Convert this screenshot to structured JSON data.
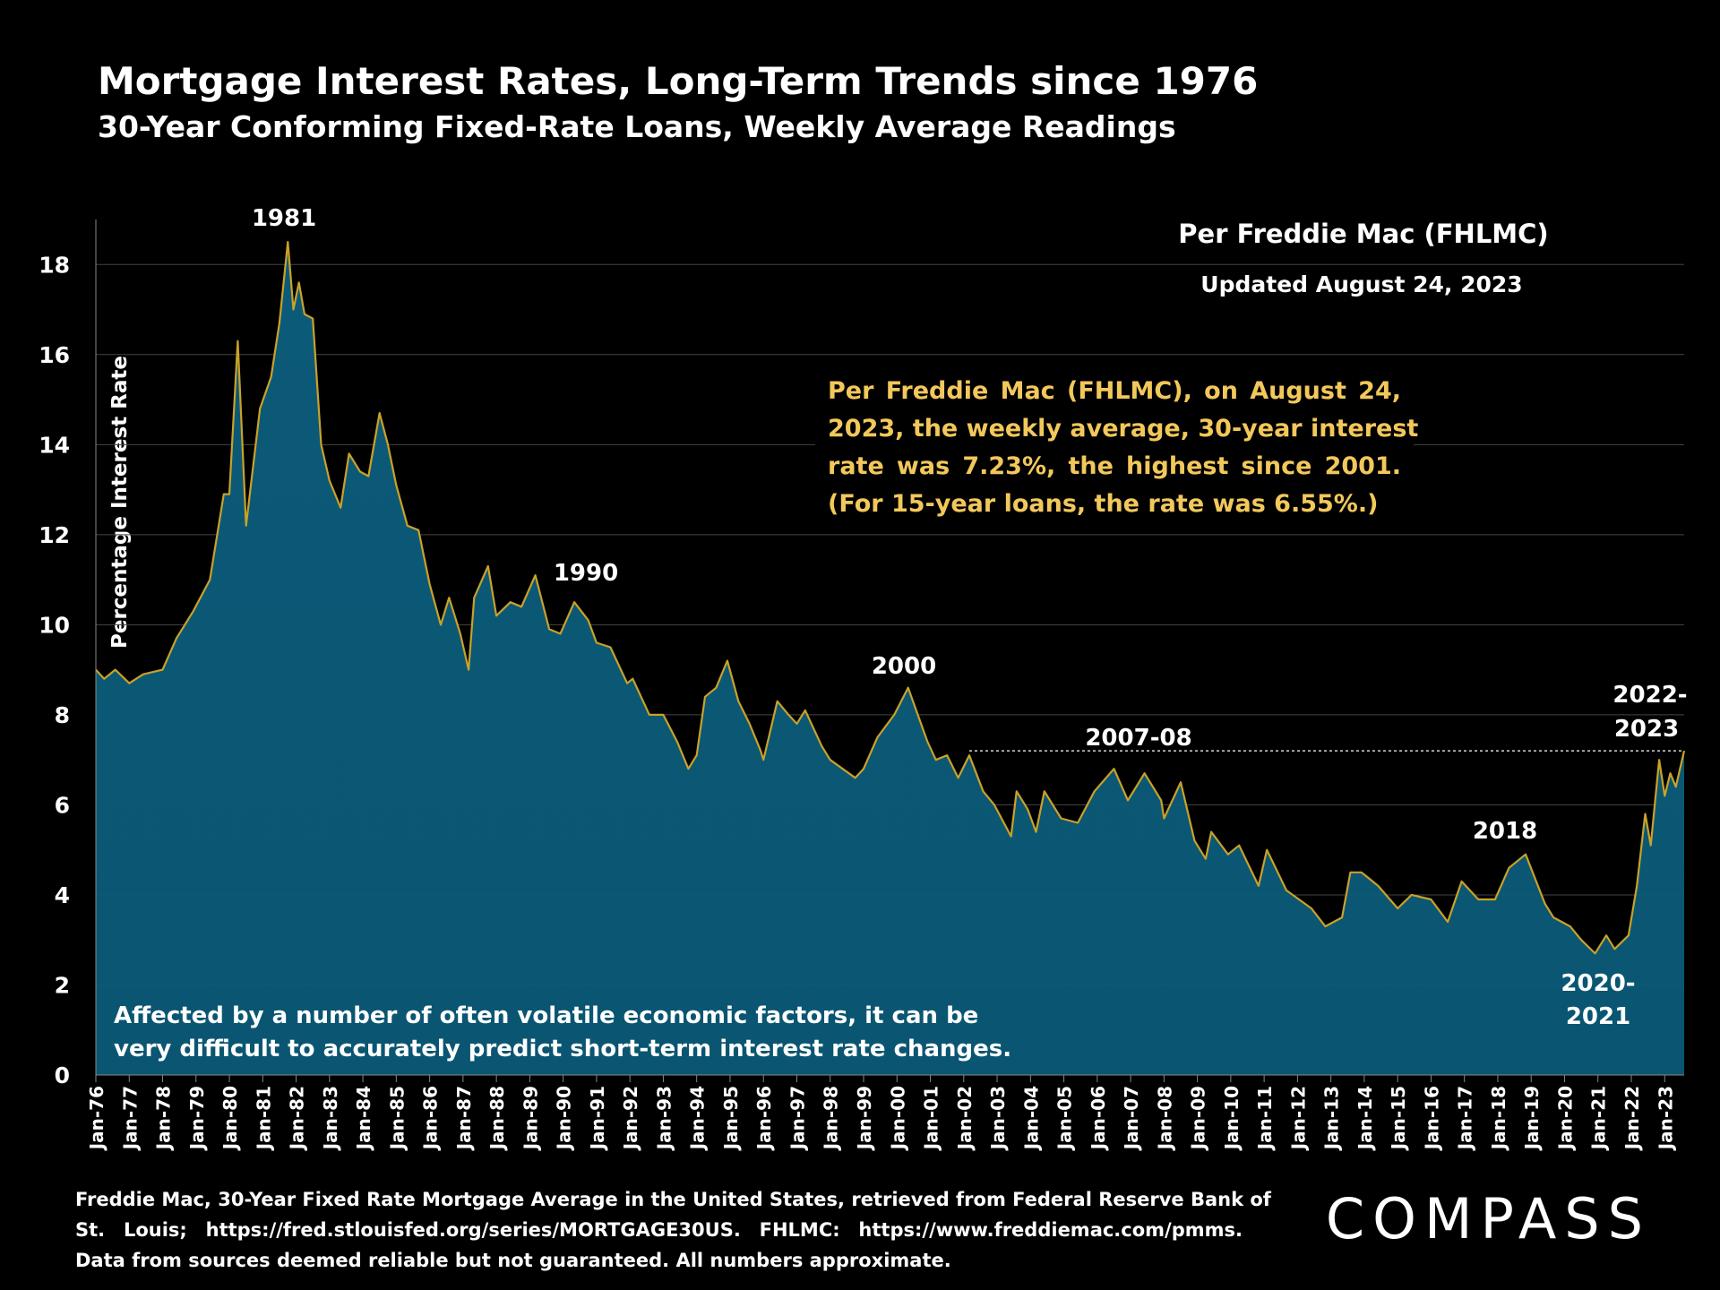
{
  "chart_data": {
    "type": "area",
    "title": "Mortgage Interest Rates, Long-Term Trends since 1976",
    "subtitle": "30-Year Conforming Fixed-Rate Loans, Weekly Average Readings",
    "source_heading": "Per Freddie Mac (FHLMC)",
    "updated": "Updated August 24, 2023",
    "y_label": "Percentage Interest  Rate",
    "logo": "COMPASS",
    "note_lines": [
      "Per Freddie Mac (FHLMC), on August 24,",
      "2023, the weekly average, 30-year interest",
      "rate was 7.23%, the highest since 2001.",
      "(For 15-year loans, the rate was 6.55%.)"
    ],
    "bottom_note_lines": [
      "Affected by a number of often volatile economic factors, it can be",
      "very difficult to accurately predict short-term interest rate changes."
    ],
    "footer_lines": [
      "Freddie Mac, 30-Year Fixed Rate Mortgage Average in the United States, retrieved from Federal Reserve Bank of",
      "St. Louis; https://fred.stlouisfed.org/series/MORTGAGE30US. FHLMC: https://www.freddiemac.com/pmms.",
      "Data from sources deemed reliable but not guaranteed. All numbers approximate."
    ],
    "annotations": [
      "1981",
      "1990",
      "2000",
      "2007-08",
      "2018",
      "2022-",
      "2023",
      "2020-",
      "2021"
    ],
    "reference_line": {
      "value": 7.2,
      "from": "2002-03"
    },
    "fill_color": "#0b5a78",
    "line_color": "#c9a227",
    "grid": true,
    "ylim": [
      0,
      19
    ],
    "yticks": [
      0,
      2,
      4,
      6,
      8,
      10,
      12,
      14,
      16,
      18
    ],
    "xlim": [
      "1976-01",
      "2023-08"
    ],
    "xticks": [
      {
        "value": "1976-01",
        "label": "Jan-76"
      },
      {
        "value": "1977-01",
        "label": "Jan-77"
      },
      {
        "value": "1978-01",
        "label": "Jan-78"
      },
      {
        "value": "1979-01",
        "label": "Jan-79"
      },
      {
        "value": "1980-01",
        "label": "Jan-80"
      },
      {
        "value": "1981-01",
        "label": "Jan-81"
      },
      {
        "value": "1982-01",
        "label": "Jan-82"
      },
      {
        "value": "1983-01",
        "label": "Jan-83"
      },
      {
        "value": "1984-01",
        "label": "Jan-84"
      },
      {
        "value": "1985-01",
        "label": "Jan-85"
      },
      {
        "value": "1986-01",
        "label": "Jan-86"
      },
      {
        "value": "1987-01",
        "label": "Jan-87"
      },
      {
        "value": "1988-01",
        "label": "Jan-88"
      },
      {
        "value": "1989-01",
        "label": "Jan-89"
      },
      {
        "value": "1990-01",
        "label": "Jan-90"
      },
      {
        "value": "1991-01",
        "label": "Jan-91"
      },
      {
        "value": "1992-01",
        "label": "Jan-92"
      },
      {
        "value": "1993-01",
        "label": "Jan-93"
      },
      {
        "value": "1994-01",
        "label": "Jan-94"
      },
      {
        "value": "1995-01",
        "label": "Jan-95"
      },
      {
        "value": "1996-01",
        "label": "Jan-96"
      },
      {
        "value": "1997-01",
        "label": "Jan-97"
      },
      {
        "value": "1998-01",
        "label": "Jan-98"
      },
      {
        "value": "1999-01",
        "label": "Jan-99"
      },
      {
        "value": "2000-01",
        "label": "Jan-00"
      },
      {
        "value": "2001-01",
        "label": "Jan-01"
      },
      {
        "value": "2002-01",
        "label": "Jan-02"
      },
      {
        "value": "2003-01",
        "label": "Jan-03"
      },
      {
        "value": "2004-01",
        "label": "Jan-04"
      },
      {
        "value": "2005-01",
        "label": "Jan-05"
      },
      {
        "value": "2006-01",
        "label": "Jan-06"
      },
      {
        "value": "2007-01",
        "label": "Jan-07"
      },
      {
        "value": "2008-01",
        "label": "Jan-08"
      },
      {
        "value": "2009-01",
        "label": "Jan-09"
      },
      {
        "value": "2010-01",
        "label": "Jan-10"
      },
      {
        "value": "2011-01",
        "label": "Jan-11"
      },
      {
        "value": "2012-01",
        "label": "Jan-12"
      },
      {
        "value": "2013-01",
        "label": "Jan-13"
      },
      {
        "value": "2014-01",
        "label": "Jan-14"
      },
      {
        "value": "2015-01",
        "label": "Jan-15"
      },
      {
        "value": "2016-01",
        "label": "Jan-16"
      },
      {
        "value": "2017-01",
        "label": "Jan-17"
      },
      {
        "value": "2018-01",
        "label": "Jan-18"
      },
      {
        "value": "2019-01",
        "label": "Jan-19"
      },
      {
        "value": "2020-01",
        "label": "Jan-20"
      },
      {
        "value": "2021-01",
        "label": "Jan-21"
      },
      {
        "value": "2022-01",
        "label": "Jan-22"
      },
      {
        "value": "2023-01",
        "label": "Jan-23"
      }
    ],
    "x": [
      "1976-01",
      "1976-04",
      "1976-08",
      "1977-01",
      "1977-06",
      "1978-01",
      "1978-06",
      "1978-12",
      "1979-06",
      "1979-11",
      "1980-01",
      "1980-04",
      "1980-07",
      "1980-12",
      "1981-04",
      "1981-07",
      "1981-10",
      "1981-12",
      "1982-02",
      "1982-04",
      "1982-07",
      "1982-10",
      "1983-01",
      "1983-05",
      "1983-08",
      "1983-12",
      "1984-03",
      "1984-07",
      "1984-10",
      "1985-01",
      "1985-05",
      "1985-09",
      "1986-01",
      "1986-05",
      "1986-08",
      "1986-12",
      "1987-03",
      "1987-05",
      "1987-10",
      "1988-01",
      "1988-06",
      "1988-10",
      "1989-03",
      "1989-08",
      "1989-12",
      "1990-05",
      "1990-10",
      "1991-01",
      "1991-06",
      "1991-12",
      "1992-02",
      "1992-08",
      "1993-01",
      "1993-06",
      "1993-10",
      "1994-01",
      "1994-04",
      "1994-08",
      "1994-12",
      "1995-04",
      "1995-08",
      "1995-12",
      "1996-01",
      "1996-06",
      "1996-10",
      "1997-01",
      "1997-04",
      "1997-10",
      "1998-01",
      "1998-10",
      "1999-01",
      "1999-06",
      "1999-12",
      "2000-05",
      "2000-12",
      "2001-03",
      "2001-07",
      "2001-11",
      "2002-03",
      "2002-08",
      "2002-12",
      "2003-06",
      "2003-08",
      "2003-12",
      "2004-03",
      "2004-06",
      "2004-12",
      "2005-06",
      "2005-12",
      "2006-07",
      "2006-12",
      "2007-06",
      "2007-12",
      "2008-01",
      "2008-07",
      "2008-12",
      "2009-04",
      "2009-06",
      "2009-12",
      "2010-04",
      "2010-11",
      "2011-02",
      "2011-09",
      "2012-06",
      "2012-11",
      "2013-05",
      "2013-08",
      "2013-12",
      "2014-06",
      "2015-01",
      "2015-06",
      "2016-01",
      "2016-07",
      "2016-12",
      "2017-06",
      "2017-12",
      "2018-05",
      "2018-11",
      "2019-06",
      "2019-09",
      "2020-03",
      "2020-07",
      "2020-12",
      "2021-04",
      "2021-07",
      "2021-12",
      "2022-03",
      "2022-06",
      "2022-08",
      "2022-11",
      "2023-01",
      "2023-03",
      "2023-05",
      "2023-08"
    ],
    "series": [
      {
        "values": [
          9.0,
          8.8,
          9.0,
          8.7,
          8.9,
          9.0,
          9.7,
          10.3,
          11.0,
          12.9,
          12.9,
          16.3,
          12.2,
          14.8,
          15.5,
          16.7,
          18.5,
          17.0,
          17.6,
          16.9,
          16.8,
          14.0,
          13.2,
          12.6,
          13.8,
          13.4,
          13.3,
          14.7,
          14.0,
          13.1,
          12.2,
          12.1,
          10.9,
          10.0,
          10.6,
          9.8,
          9.0,
          10.6,
          11.3,
          10.2,
          10.5,
          10.4,
          11.1,
          9.9,
          9.8,
          10.5,
          10.1,
          9.6,
          9.5,
          8.7,
          8.8,
          8.0,
          8.0,
          7.4,
          6.8,
          7.1,
          8.4,
          8.6,
          9.2,
          8.3,
          7.8,
          7.2,
          7.0,
          8.3,
          8.0,
          7.8,
          8.1,
          7.3,
          7.0,
          6.6,
          6.8,
          7.5,
          8.0,
          8.6,
          7.4,
          7.0,
          7.1,
          6.6,
          7.1,
          6.3,
          6.0,
          5.3,
          6.3,
          5.9,
          5.4,
          6.3,
          5.7,
          5.6,
          6.3,
          6.8,
          6.1,
          6.7,
          6.1,
          5.7,
          6.5,
          5.2,
          4.8,
          5.4,
          4.9,
          5.1,
          4.2,
          5.0,
          4.1,
          3.7,
          3.3,
          3.5,
          4.5,
          4.5,
          4.2,
          3.7,
          4.0,
          3.9,
          3.4,
          4.3,
          3.9,
          3.9,
          4.6,
          4.9,
          3.8,
          3.5,
          3.3,
          3.0,
          2.7,
          3.1,
          2.8,
          3.1,
          4.2,
          5.8,
          5.1,
          7.0,
          6.2,
          6.7,
          6.4,
          7.2
        ]
      }
    ]
  }
}
